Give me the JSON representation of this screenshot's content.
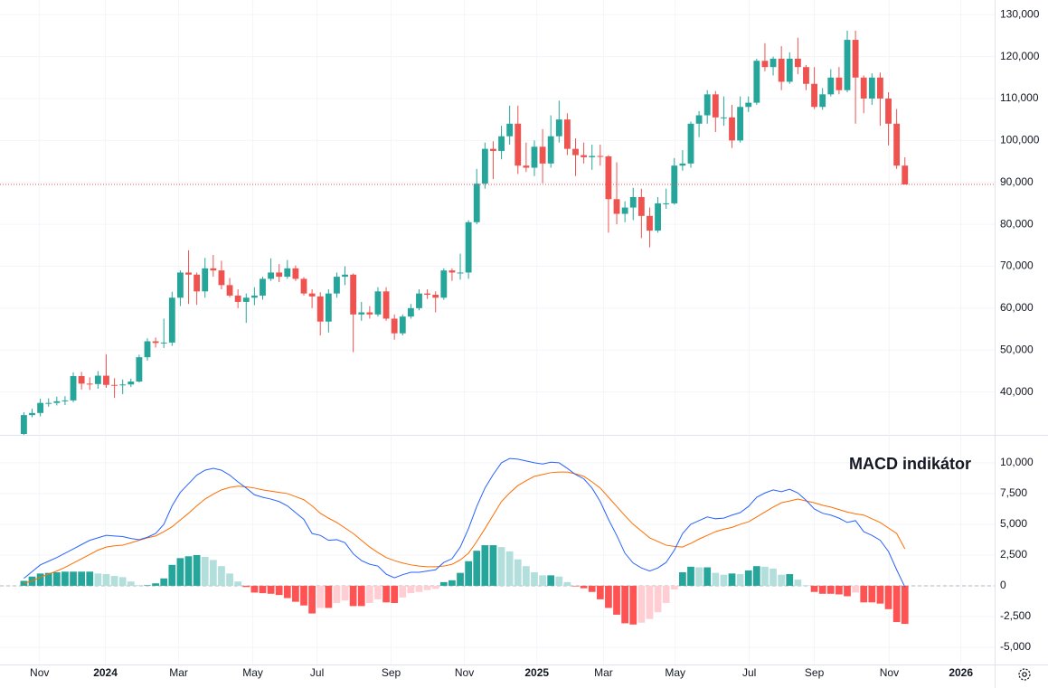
{
  "chart_data": {
    "type": "candlestick",
    "x": [
      0,
      1,
      2,
      3,
      4,
      5,
      6,
      7,
      8,
      9,
      10,
      11,
      12,
      13,
      14,
      15,
      16,
      17,
      18,
      19,
      20,
      21,
      22,
      23,
      24,
      25,
      26,
      27,
      28,
      29,
      30,
      31,
      32,
      33,
      34,
      35,
      36,
      37,
      38,
      39,
      40,
      41,
      42,
      43,
      44,
      45,
      46,
      47,
      48,
      49,
      50,
      51,
      52,
      53,
      54,
      55,
      56,
      57,
      58,
      59,
      60,
      61,
      62,
      63,
      64,
      65,
      66,
      67,
      68,
      69,
      70,
      71,
      72,
      73,
      74,
      75,
      76,
      77,
      78,
      79,
      80,
      81,
      82,
      83,
      84,
      85,
      86,
      87,
      88,
      89,
      90,
      91,
      92,
      93,
      94,
      95,
      96,
      97,
      98,
      99,
      100,
      101,
      102,
      103,
      104,
      105,
      106,
      107
    ],
    "xlim": [
      -2.9,
      117.9
    ],
    "xticks": [
      {
        "value": 1.9,
        "label": "Nov"
      },
      {
        "value": 9.9,
        "label": "2024"
      },
      {
        "value": 18.8,
        "label": "Mar"
      },
      {
        "value": 27.8,
        "label": "May"
      },
      {
        "value": 35.6,
        "label": "Jul"
      },
      {
        "value": 44.6,
        "label": "Sep"
      },
      {
        "value": 53.5,
        "label": "Nov"
      },
      {
        "value": 62.3,
        "label": "2025"
      },
      {
        "value": 70.4,
        "label": "Mar"
      },
      {
        "value": 79.1,
        "label": "May"
      },
      {
        "value": 88.1,
        "label": "Jul"
      },
      {
        "value": 96.0,
        "label": "Sep"
      },
      {
        "value": 105.1,
        "label": "Nov"
      },
      {
        "value": 113.8,
        "label": "2026"
      }
    ],
    "open": [
      30000,
      34500,
      35000,
      37400,
      37400,
      37800,
      38000,
      43800,
      42000,
      41900,
      43900,
      41700,
      41600,
      41800,
      42500,
      48300,
      52100,
      51700,
      51800,
      62500,
      68500,
      68000,
      64000,
      69500,
      69000,
      65500,
      63000,
      61500,
      62500,
      63000,
      67000,
      68500,
      67500,
      69500,
      67000,
      63500,
      62800,
      56800,
      63500,
      67500,
      68000,
      58500,
      59000,
      58500,
      64000,
      57500,
      54000,
      58000,
      60000,
      63500,
      63200,
      62500,
      69000,
      68500,
      68500,
      80500,
      89700,
      98000,
      97500,
      101000,
      104000,
      94000,
      93500,
      98500,
      94500,
      101000,
      105000,
      98000,
      96500,
      96000,
      96300,
      96200,
      86000,
      82500,
      84000,
      86500,
      82000,
      78500,
      85000,
      85000,
      94000,
      94500,
      104000,
      106000,
      111000,
      105500,
      105500,
      100000,
      108000,
      109000,
      119000,
      117500,
      119500,
      114000,
      119500,
      117500,
      113500,
      108000,
      111000,
      115000,
      112000,
      124000,
      115000,
      110000,
      115000,
      110000,
      104000,
      94000
    ],
    "high": [
      35200,
      36000,
      38400,
      38500,
      38900,
      39000,
      44700,
      44800,
      43500,
      45000,
      49000,
      43300,
      43000,
      43200,
      48900,
      52800,
      53000,
      57500,
      63900,
      69000,
      73800,
      68500,
      72000,
      72700,
      71300,
      67200,
      64500,
      63500,
      65000,
      67500,
      71900,
      70500,
      71500,
      70200,
      67400,
      64500,
      63800,
      64500,
      68500,
      70000,
      68300,
      61500,
      60500,
      65000,
      65000,
      58500,
      58500,
      61000,
      64500,
      64500,
      64000,
      69500,
      69500,
      73000,
      81000,
      93200,
      99500,
      99800,
      103500,
      108300,
      108300,
      99500,
      100000,
      102700,
      106000,
      109500,
      106500,
      100500,
      99500,
      99000,
      99000,
      96500,
      94800,
      85500,
      88700,
      88500,
      84000,
      86500,
      88500,
      95800,
      97700,
      104500,
      107000,
      112000,
      111800,
      110500,
      108500,
      110500,
      110500,
      119500,
      123200,
      120000,
      122500,
      121000,
      124500,
      118000,
      117500,
      112500,
      117000,
      117500,
      126200,
      126200,
      115500,
      116000,
      116200,
      111500,
      107500,
      96000
    ],
    "low": [
      29800,
      34000,
      34200,
      36500,
      36800,
      36900,
      37600,
      40600,
      40500,
      40800,
      41000,
      38600,
      39500,
      41200,
      42300,
      47500,
      50600,
      50500,
      51000,
      60500,
      61000,
      60800,
      62500,
      67500,
      64500,
      62600,
      60000,
      56500,
      60700,
      62000,
      66500,
      66200,
      67000,
      66500,
      63000,
      60000,
      53500,
      54200,
      62500,
      65500,
      49500,
      57000,
      57500,
      58000,
      57000,
      52500,
      53500,
      57500,
      59500,
      62200,
      59000,
      62000,
      66500,
      66800,
      67000,
      80000,
      88500,
      90800,
      95500,
      99000,
      92000,
      92500,
      91500,
      89800,
      93500,
      99500,
      96500,
      91500,
      94500,
      93000,
      94000,
      78000,
      80000,
      80500,
      81000,
      76700,
      74500,
      78000,
      83700,
      84700,
      92800,
      93500,
      100800,
      104000,
      102000,
      103500,
      98200,
      99500,
      106800,
      108500,
      116500,
      115500,
      112000,
      113500,
      115800,
      112000,
      107500,
      107300,
      110500,
      111000,
      111500,
      104000,
      106500,
      108500,
      103500,
      98800,
      93200,
      89500
    ],
    "close": [
      34500,
      35000,
      37400,
      37400,
      37800,
      38000,
      43800,
      42000,
      41900,
      43900,
      41700,
      41600,
      41800,
      42500,
      48300,
      52100,
      51700,
      51800,
      62500,
      68500,
      68000,
      64000,
      69500,
      69000,
      65500,
      63000,
      61500,
      62500,
      63000,
      67000,
      68500,
      67500,
      69500,
      67000,
      63500,
      62800,
      56800,
      63500,
      67500,
      68000,
      58500,
      59000,
      58500,
      64000,
      57500,
      54000,
      58000,
      60000,
      63500,
      63200,
      62500,
      69000,
      68500,
      68500,
      80500,
      89700,
      98000,
      97500,
      101000,
      104000,
      94000,
      93500,
      98500,
      94500,
      101000,
      105000,
      98000,
      96500,
      96000,
      96300,
      96200,
      86000,
      82500,
      84000,
      86500,
      82000,
      78500,
      85000,
      85000,
      94000,
      94500,
      104000,
      106000,
      111000,
      105500,
      105500,
      100000,
      108000,
      109000,
      119000,
      117500,
      119500,
      114000,
      119500,
      117500,
      113500,
      108000,
      111000,
      115000,
      112000,
      124000,
      115000,
      110000,
      115000,
      110000,
      104000,
      94000,
      89500
    ],
    "up_color": "#26a69a",
    "down_color": "#ef5350",
    "ylim": [
      30000,
      133500
    ],
    "yticks": [
      {
        "value": 40000,
        "label": "40,000"
      },
      {
        "value": 50000,
        "label": "50,000"
      },
      {
        "value": 60000,
        "label": "60,000"
      },
      {
        "value": 70000,
        "label": "70,000"
      },
      {
        "value": 80000,
        "label": "80,000"
      },
      {
        "value": 90000,
        "label": "90,000"
      },
      {
        "value": 100000,
        "label": "100,000"
      },
      {
        "value": 110000,
        "label": "110,000"
      },
      {
        "value": 120000,
        "label": "120,000"
      },
      {
        "value": 130000,
        "label": "130,000"
      }
    ],
    "grid": true,
    "indicator": {
      "type": "macd",
      "title": "MACD indikátor",
      "ylim": [
        -6400,
        12200
      ],
      "yticks": [
        {
          "value": 10000,
          "label": "10,000"
        },
        {
          "value": 7500,
          "label": "7,500"
        },
        {
          "value": 5000,
          "label": "5,000"
        },
        {
          "value": 2500,
          "label": "2,500"
        },
        0,
        {
          "value": -2500,
          "label": "-2,500"
        },
        {
          "value": -5000,
          "label": "-5,000"
        }
      ],
      "macd": {
        "color": "#2962ff",
        "values": [
          600,
          1150,
          1700,
          2000,
          2300,
          2650,
          3000,
          3350,
          3700,
          3900,
          4100,
          4050,
          4000,
          3850,
          3750,
          3950,
          4250,
          5000,
          6500,
          7600,
          8300,
          9000,
          9400,
          9550,
          9400,
          9000,
          8450,
          7950,
          7400,
          7200,
          7050,
          6850,
          6500,
          5950,
          5400,
          4250,
          4100,
          3700,
          3750,
          3500,
          2600,
          2050,
          1750,
          1600,
          950,
          650,
          900,
          1100,
          1100,
          1200,
          1300,
          1900,
          2200,
          3150,
          4650,
          6450,
          7950,
          9050,
          10000,
          10350,
          10300,
          10150,
          10000,
          9900,
          10050,
          10000,
          9550,
          9050,
          8700,
          7950,
          6850,
          5400,
          4100,
          2650,
          1850,
          1450,
          1200,
          1450,
          1900,
          2900,
          4250,
          5000,
          5300,
          5600,
          5450,
          5500,
          5750,
          5950,
          6450,
          7200,
          7550,
          7800,
          7650,
          7850,
          7550,
          6950,
          6250,
          5900,
          5750,
          5500,
          5150,
          5300,
          4400,
          4100,
          3700,
          2800,
          1300,
          -100
        ]
      },
      "signal": {
        "color": "#ff6d00",
        "values": [
          200,
          400,
          700,
          950,
          1200,
          1500,
          1850,
          2200,
          2550,
          2900,
          3150,
          3250,
          3300,
          3500,
          3700,
          3900,
          4050,
          4400,
          4800,
          5350,
          5900,
          6500,
          7050,
          7450,
          7800,
          8000,
          8100,
          8050,
          7950,
          7800,
          7700,
          7600,
          7500,
          7250,
          7000,
          6500,
          5900,
          5500,
          5150,
          4700,
          4250,
          3700,
          3150,
          2700,
          2300,
          2050,
          1850,
          1700,
          1600,
          1550,
          1550,
          1600,
          1750,
          2100,
          2650,
          3600,
          4650,
          5750,
          6850,
          7550,
          8150,
          8550,
          8900,
          9050,
          9200,
          9250,
          9250,
          9100,
          8900,
          8450,
          7950,
          7200,
          6450,
          5700,
          5000,
          4450,
          3900,
          3600,
          3300,
          3200,
          3150,
          3450,
          3800,
          4100,
          4400,
          4600,
          4750,
          5000,
          5200,
          5600,
          6000,
          6400,
          6750,
          6900,
          7050,
          6900,
          6750,
          6550,
          6400,
          6200,
          6000,
          5850,
          5750,
          5450,
          5150,
          4700,
          4250,
          3000
        ]
      },
      "histogram": {
        "colors": [
          "#26a69a",
          "#b2dfdb",
          "#ff5252",
          "#ffcdd2"
        ],
        "values": [
          400,
          750,
          1000,
          1050,
          1100,
          1150,
          1150,
          1150,
          1150,
          1000,
          950,
          800,
          700,
          350,
          50,
          50,
          200,
          600,
          1700,
          2250,
          2400,
          2500,
          2350,
          2100,
          1600,
          1000,
          350,
          -100,
          -550,
          -600,
          -650,
          -750,
          -1000,
          -1300,
          -1600,
          -2250,
          -1800,
          -1800,
          -1400,
          -1200,
          -1650,
          -1650,
          -1400,
          -1100,
          -1350,
          -1400,
          -950,
          -600,
          -500,
          -350,
          -250,
          300,
          450,
          1050,
          2000,
          2850,
          3300,
          3300,
          3150,
          2800,
          2150,
          1600,
          1100,
          850,
          850,
          750,
          300,
          -50,
          -200,
          -500,
          -1100,
          -1800,
          -2350,
          -3050,
          -3150,
          -3000,
          -2700,
          -2150,
          -1400,
          -300,
          1100,
          1550,
          1500,
          1500,
          1050,
          900,
          1000,
          950,
          1250,
          1600,
          1550,
          1400,
          900,
          950,
          500,
          50,
          -500,
          -650,
          -650,
          -700,
          -850,
          -550,
          -1350,
          -1350,
          -1450,
          -1900,
          -2950,
          -3100
        ]
      }
    }
  }
}
